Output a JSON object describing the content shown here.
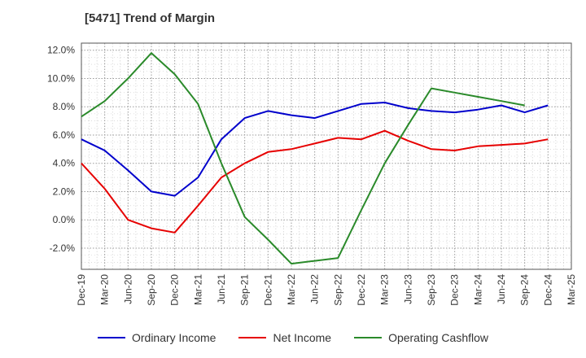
{
  "chart_data": {
    "type": "line",
    "title": "[5471]  Trend of Margin",
    "xlabel": "",
    "ylabel": "",
    "categories": [
      "Dec-19",
      "Mar-20",
      "Jun-20",
      "Sep-20",
      "Dec-20",
      "Mar-21",
      "Jun-21",
      "Sep-21",
      "Dec-21",
      "Mar-22",
      "Jun-22",
      "Sep-22",
      "Dec-22",
      "Mar-23",
      "Jun-23",
      "Sep-23",
      "Dec-23",
      "Mar-24",
      "Jun-24",
      "Sep-24",
      "Dec-24",
      "Mar-25"
    ],
    "ylim": [
      -3.5,
      12.5
    ],
    "yticks": [
      -2.0,
      0.0,
      2.0,
      4.0,
      6.0,
      8.0,
      10.0,
      12.0
    ],
    "ytick_labels": [
      "-2.0%",
      "0.0%",
      "2.0%",
      "4.0%",
      "6.0%",
      "8.0%",
      "10.0%",
      "12.0%"
    ],
    "grid": true,
    "legend_position": "bottom",
    "series": [
      {
        "name": "Ordinary Income",
        "color": "#0000cc",
        "values": [
          5.7,
          4.9,
          3.5,
          2.0,
          1.7,
          3.0,
          5.7,
          7.2,
          7.7,
          7.4,
          7.2,
          7.7,
          8.2,
          8.3,
          7.9,
          7.7,
          7.6,
          7.8,
          8.1,
          7.6,
          8.1,
          null
        ]
      },
      {
        "name": "Net Income",
        "color": "#e60000",
        "values": [
          4.0,
          2.2,
          0.0,
          -0.6,
          -0.9,
          1.0,
          3.0,
          4.0,
          4.8,
          5.0,
          5.4,
          5.8,
          5.7,
          6.3,
          5.6,
          5.0,
          4.9,
          5.2,
          5.3,
          5.4,
          5.7,
          null
        ]
      },
      {
        "name": "Operating Cashflow",
        "color": "#2a8a2a",
        "values": [
          7.3,
          8.4,
          10.0,
          11.8,
          10.3,
          8.2,
          4.0,
          0.2,
          -1.4,
          -3.1,
          -2.9,
          -2.7,
          0.7,
          4.0,
          6.7,
          9.3,
          9.0,
          8.7,
          8.4,
          8.1,
          null,
          null
        ]
      }
    ]
  }
}
